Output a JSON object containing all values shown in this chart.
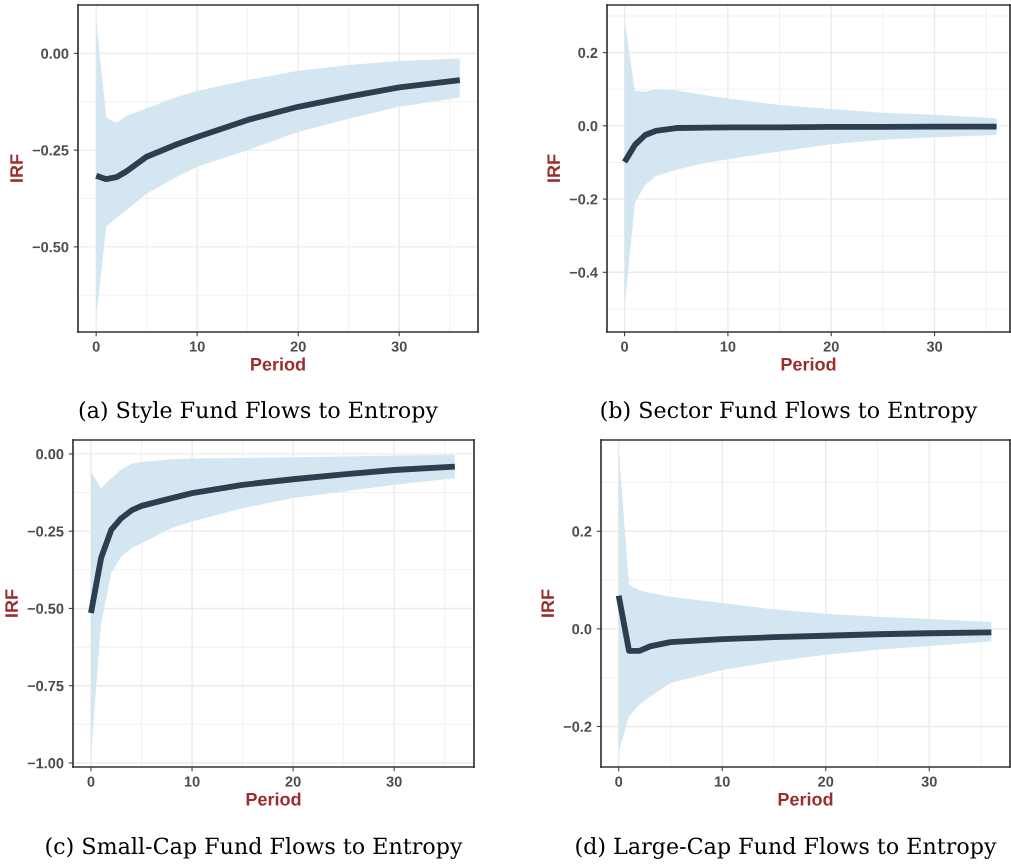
{
  "chart_data": [
    {
      "type": "line",
      "title": "(a) Style Fund Flows to Entropy",
      "xlabel": "Period",
      "ylabel": "IRF",
      "xlim": [
        -1.8,
        37.8
      ],
      "ylim": [
        -0.72,
        0.125
      ],
      "xticks": [
        0,
        10,
        20,
        30
      ],
      "yticks": [
        {
          "value": 0,
          "label": "0.00"
        },
        {
          "value": -0.25,
          "label": "−0.25"
        },
        {
          "value": -0.5,
          "label": "−0.50"
        }
      ],
      "grid": true,
      "series": [
        {
          "color": "#2c3e50",
          "x": [
            0,
            1,
            2,
            3,
            5,
            8,
            10,
            15,
            20,
            25,
            30,
            36
          ],
          "values": [
            -0.316,
            -0.325,
            -0.32,
            -0.305,
            -0.267,
            -0.235,
            -0.216,
            -0.172,
            -0.138,
            -0.112,
            -0.088,
            -0.069
          ],
          "upper": [
            0.086,
            -0.166,
            -0.179,
            -0.162,
            -0.142,
            -0.112,
            -0.097,
            -0.069,
            -0.045,
            -0.03,
            -0.02,
            -0.013
          ],
          "lower": [
            -0.681,
            -0.448,
            -0.425,
            -0.405,
            -0.362,
            -0.319,
            -0.293,
            -0.25,
            -0.203,
            -0.169,
            -0.138,
            -0.114
          ]
        }
      ]
    },
    {
      "type": "line",
      "title": "(b) Sector Fund Flows to Entropy",
      "xlabel": "Period",
      "ylabel": "IRF",
      "xlim": [
        -1.7,
        37.3
      ],
      "ylim": [
        -0.563,
        0.33
      ],
      "xticks": [
        0,
        10,
        20,
        30
      ],
      "yticks": [
        {
          "value": -0.4,
          "label": "−0.4"
        },
        {
          "value": -0.2,
          "label": "−0.2"
        },
        {
          "value": 0,
          "label": "0.0"
        },
        {
          "value": 0.2,
          "label": "0.2"
        }
      ],
      "grid": true,
      "series": [
        {
          "color": "#2c3e50",
          "x": [
            0,
            1,
            2,
            3,
            5,
            8,
            10,
            15,
            20,
            25,
            30,
            36
          ],
          "values": [
            -0.099,
            -0.052,
            -0.025,
            -0.014,
            -0.006,
            -0.005,
            -0.004,
            -0.004,
            -0.003,
            -0.003,
            -0.002,
            -0.002
          ],
          "upper": [
            0.289,
            0.096,
            0.093,
            0.1,
            0.097,
            0.083,
            0.075,
            0.057,
            0.046,
            0.036,
            0.03,
            0.021
          ],
          "lower": [
            -0.497,
            -0.211,
            -0.161,
            -0.138,
            -0.12,
            -0.1,
            -0.091,
            -0.07,
            -0.05,
            -0.038,
            -0.031,
            -0.025
          ]
        }
      ]
    },
    {
      "type": "line",
      "title": "(c) Small-Cap Fund Flows to Entropy",
      "xlabel": "Period",
      "ylabel": "IRF",
      "xlim": [
        -1.78,
        37.9
      ],
      "ylim": [
        -1.013,
        0.045
      ],
      "xticks": [
        0,
        10,
        20,
        30
      ],
      "yticks": [
        {
          "value": -1,
          "label": "−1.00"
        },
        {
          "value": -0.75,
          "label": "−0.75"
        },
        {
          "value": -0.5,
          "label": "−0.50"
        },
        {
          "value": -0.25,
          "label": "−0.25"
        },
        {
          "value": 0,
          "label": "0.00"
        }
      ],
      "grid": true,
      "series": [
        {
          "color": "#2c3e50",
          "x": [
            0,
            1,
            2,
            3,
            4,
            5,
            8,
            10,
            15,
            20,
            25,
            30,
            36
          ],
          "values": [
            -0.515,
            -0.337,
            -0.246,
            -0.208,
            -0.183,
            -0.168,
            -0.143,
            -0.127,
            -0.1,
            -0.082,
            -0.066,
            -0.052,
            -0.041
          ],
          "upper": [
            -0.057,
            -0.111,
            -0.079,
            -0.05,
            -0.032,
            -0.026,
            -0.017,
            -0.015,
            -0.013,
            -0.011,
            -0.008,
            -0.005,
            -0.003
          ],
          "lower": [
            -0.973,
            -0.547,
            -0.386,
            -0.332,
            -0.305,
            -0.289,
            -0.24,
            -0.219,
            -0.176,
            -0.143,
            -0.122,
            -0.1,
            -0.079
          ]
        }
      ]
    },
    {
      "type": "line",
      "title": "(d) Large-Cap Fund Flows to Entropy",
      "xlabel": "Period",
      "ylabel": "IRF",
      "xlim": [
        -1.71,
        37.8
      ],
      "ylim": [
        -0.283,
        0.387
      ],
      "xticks": [
        0,
        10,
        20,
        30
      ],
      "yticks": [
        {
          "value": -0.2,
          "label": "−0.2"
        },
        {
          "value": 0,
          "label": "0.0"
        },
        {
          "value": 0.2,
          "label": "0.2"
        }
      ],
      "grid": true,
      "series": [
        {
          "color": "#2c3e50",
          "x": [
            0,
            1,
            2,
            3,
            5,
            10,
            15,
            20,
            25,
            30,
            36
          ],
          "values": [
            0.068,
            -0.045,
            -0.045,
            -0.036,
            -0.027,
            -0.021,
            -0.017,
            -0.014,
            -0.011,
            -0.009,
            -0.007
          ],
          "upper": [
            0.367,
            0.09,
            0.079,
            0.074,
            0.066,
            0.053,
            0.04,
            0.031,
            0.025,
            0.02,
            0.014
          ],
          "lower": [
            -0.251,
            -0.179,
            -0.155,
            -0.139,
            -0.111,
            -0.084,
            -0.067,
            -0.053,
            -0.043,
            -0.035,
            -0.026
          ]
        }
      ]
    }
  ]
}
